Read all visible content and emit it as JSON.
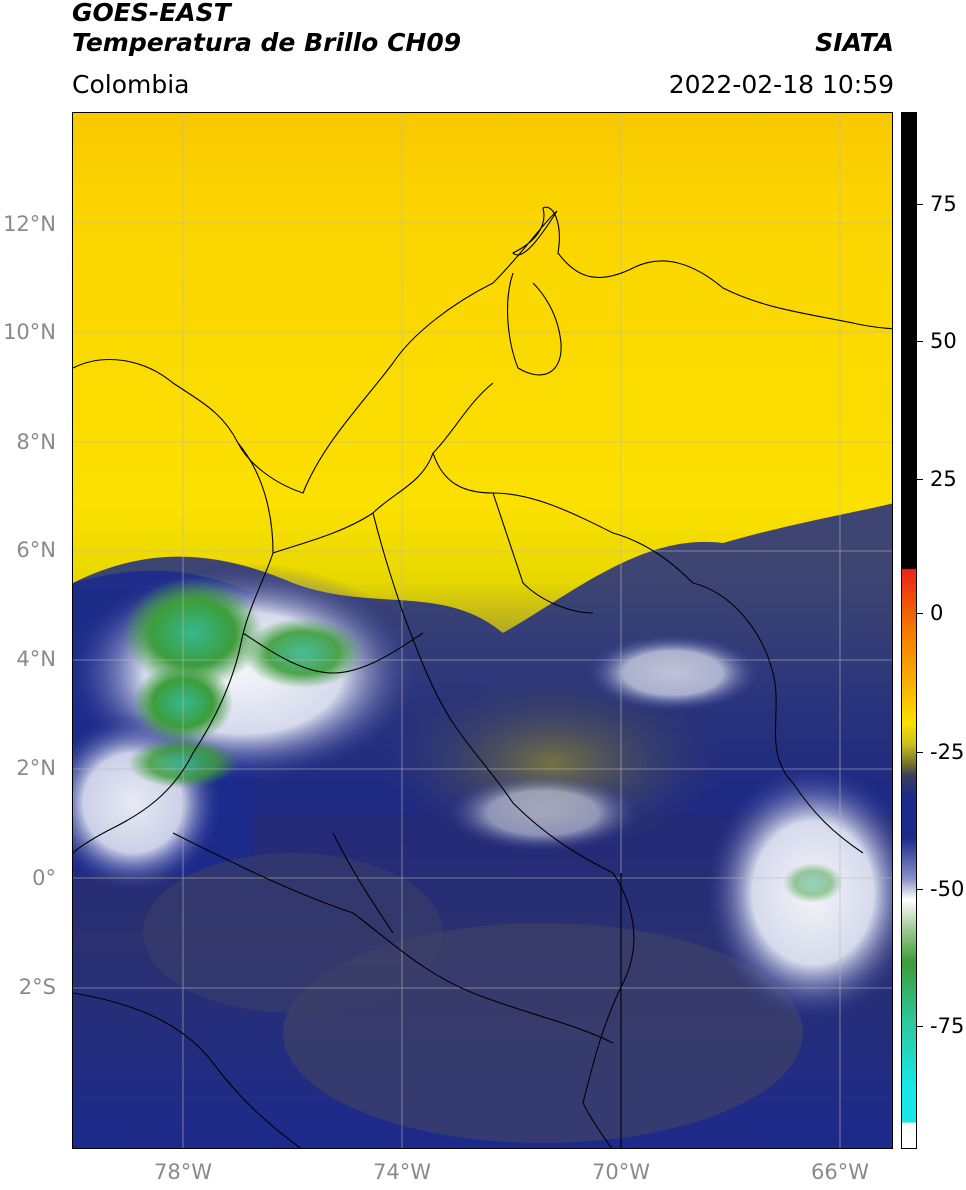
{
  "header": {
    "title_line1": "GOES-EAST",
    "title_line2": "Temperatura de Brillo CH09",
    "source": "SIATA",
    "region": "Colombia",
    "timestamp": "2022-02-18 10:59"
  },
  "map": {
    "extent": {
      "lon_min": -80.0,
      "lon_max": -65.0,
      "lat_min": -5.0,
      "lat_max": 14.0
    },
    "lat_ticks": [
      "12°N",
      "10°N",
      "8°N",
      "6°N",
      "4°N",
      "2°N",
      "0°",
      "2°S"
    ],
    "lon_ticks": [
      "78°W",
      "74°W",
      "70°W",
      "66°W"
    ],
    "grid": true
  },
  "colorbar": {
    "ticks": [
      "75",
      "50",
      "25",
      "0",
      "-25",
      "-50",
      "-75"
    ],
    "range": [
      -95,
      90
    ],
    "colors": {
      "warm_saturation": "#000000",
      "red": "#e8241a",
      "orange": "#f59a00",
      "yellow": "#fbe000",
      "olive": "#6f6e2c",
      "navy": "#1c2a8c",
      "white": "#ffffff",
      "green": "#3c9d3a",
      "teal": "#2ec9a0",
      "cyan": "#17e8e8"
    }
  }
}
